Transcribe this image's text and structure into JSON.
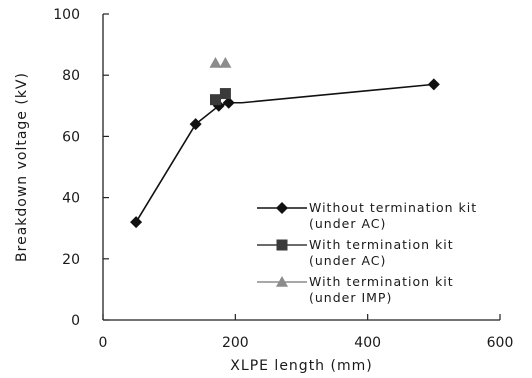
{
  "chart_data": {
    "type": "scatter",
    "xlabel": "XLPE length (mm)",
    "ylabel": "Breakdown voltage (kV)",
    "xlim": [
      0,
      600
    ],
    "ylim": [
      0,
      100
    ],
    "x_ticks": [
      "0",
      "200",
      "400",
      "600"
    ],
    "y_ticks": [
      "0",
      "20",
      "40",
      "60",
      "80",
      "100"
    ],
    "grid": false,
    "legend_position": "bottom-right",
    "series": [
      {
        "name": "Without termination kit (under AC)",
        "legend_lines": [
          "Without termination kit",
          "(under AC)"
        ],
        "marker": "diamond",
        "color": "#111111",
        "line": true,
        "points": [
          {
            "x": 50,
            "y": 32
          },
          {
            "x": 140,
            "y": 64
          },
          {
            "x": 175,
            "y": 70
          },
          {
            "x": 190,
            "y": 71
          },
          {
            "x": 210,
            "y": 71
          },
          {
            "x": 500,
            "y": 77
          }
        ]
      },
      {
        "name": "With termination kit (under AC)",
        "legend_lines": [
          "With termination kit",
          "(under AC)"
        ],
        "marker": "square",
        "color": "#3a3a3a",
        "line": false,
        "points": [
          {
            "x": 170,
            "y": 72
          },
          {
            "x": 185,
            "y": 74
          }
        ]
      },
      {
        "name": "With termination kit (under IMP)",
        "legend_lines": [
          "With termination kit",
          "(under IMP)"
        ],
        "marker": "triangle",
        "color": "#8c8c8c",
        "line": false,
        "points": [
          {
            "x": 170,
            "y": 84
          },
          {
            "x": 185,
            "y": 84
          }
        ]
      }
    ]
  }
}
